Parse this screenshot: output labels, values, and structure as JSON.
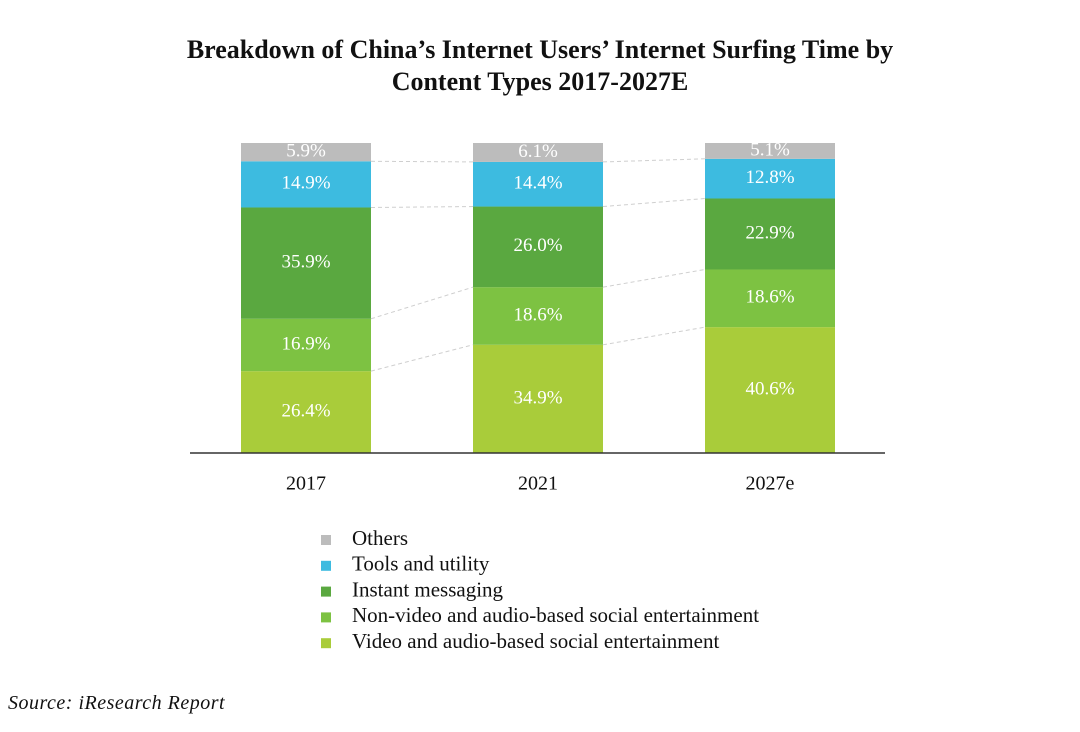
{
  "chart_data": {
    "type": "stacked_bar",
    "title": "Breakdown of China’s Internet Users’ Internet Surfing Time by Content Types 2017-2027E",
    "source": "Source: iResearch Report",
    "categories": [
      "2017",
      "2021",
      "2027e"
    ],
    "ylim": [
      0,
      100
    ],
    "series": [
      {
        "name": "Others",
        "color": "#bcbcbc",
        "values": [
          5.9,
          6.1,
          5.1
        ],
        "value_labels": [
          "5.9%",
          "6.1%",
          "5.1%"
        ]
      },
      {
        "name": "Tools and utility",
        "color": "#3dbbe0",
        "values": [
          14.9,
          14.4,
          12.8
        ],
        "value_labels": [
          "14.9%",
          "14.4%",
          "12.8%"
        ]
      },
      {
        "name": "Instant messaging",
        "color": "#5aa840",
        "values": [
          35.9,
          26.0,
          22.9
        ],
        "value_labels": [
          "35.9%",
          "26.0%",
          "22.9%"
        ]
      },
      {
        "name": "Non-video and audio-based social entertainment",
        "color": "#7dc242",
        "values": [
          16.9,
          18.6,
          18.6
        ],
        "value_labels": [
          "16.9%",
          "18.6%",
          "18.6%"
        ]
      },
      {
        "name": "Video and audio-based social entertainment",
        "color": "#a9cc3a",
        "values": [
          26.4,
          34.9,
          40.6
        ],
        "value_labels": [
          "26.4%",
          "34.9%",
          "40.6%"
        ]
      }
    ]
  }
}
